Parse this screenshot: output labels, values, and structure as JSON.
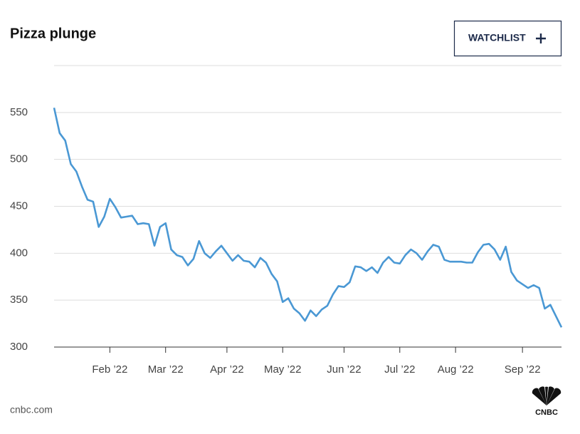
{
  "chart_data": {
    "type": "line",
    "title": "Pizza plunge",
    "categories": [
      null,
      null,
      null,
      null,
      null,
      null,
      null,
      null,
      null,
      null,
      "Feb ’22",
      null,
      null,
      null,
      null,
      null,
      null,
      null,
      null,
      null,
      "Mar ’22",
      null,
      null,
      null,
      null,
      null,
      null,
      null,
      null,
      null,
      null,
      "Apr ’22",
      null,
      null,
      null,
      null,
      null,
      null,
      null,
      null,
      null,
      "May ’22",
      null,
      null,
      null,
      null,
      null,
      null,
      null,
      null,
      null,
      null,
      "Jun ’22",
      null,
      null,
      null,
      null,
      null,
      null,
      null,
      null,
      null,
      "Jul ’22",
      null,
      null,
      null,
      null,
      null,
      null,
      null,
      null,
      null,
      "Aug ’22",
      null,
      null,
      null,
      null,
      null,
      null,
      null,
      null,
      null,
      null,
      null,
      "Sep ’22",
      null,
      null,
      null,
      null,
      null,
      null,
      null
    ],
    "series": [
      {
        "color": "#4a98d4",
        "values": [
          555,
          528,
          520,
          495,
          487,
          471,
          457,
          455,
          428,
          439,
          458,
          449,
          438,
          439,
          440,
          431,
          432,
          431,
          408,
          428,
          432,
          404,
          398,
          396,
          387,
          394,
          413,
          400,
          395,
          402,
          408,
          400,
          392,
          398,
          392,
          391,
          385,
          395,
          390,
          378,
          370,
          348,
          352,
          341,
          336,
          328,
          339,
          333,
          340,
          344,
          356,
          365,
          364,
          369,
          386,
          385,
          381,
          385,
          379,
          390,
          396,
          390,
          389,
          398,
          404,
          400,
          393,
          402,
          409,
          407,
          393,
          391,
          391,
          391,
          390,
          390,
          401,
          409,
          410,
          404,
          393,
          407,
          380,
          371,
          367,
          363,
          366,
          363,
          341,
          345,
          333,
          321
        ]
      }
    ],
    "ylim": [
      300,
      600
    ],
    "yticks": [
      300,
      350,
      400,
      450,
      500,
      550
    ],
    "grid": true
  },
  "watchlist_button": "WATCHLIST",
  "footer": {
    "source": "cnbc.com",
    "logo": "CNBC"
  }
}
